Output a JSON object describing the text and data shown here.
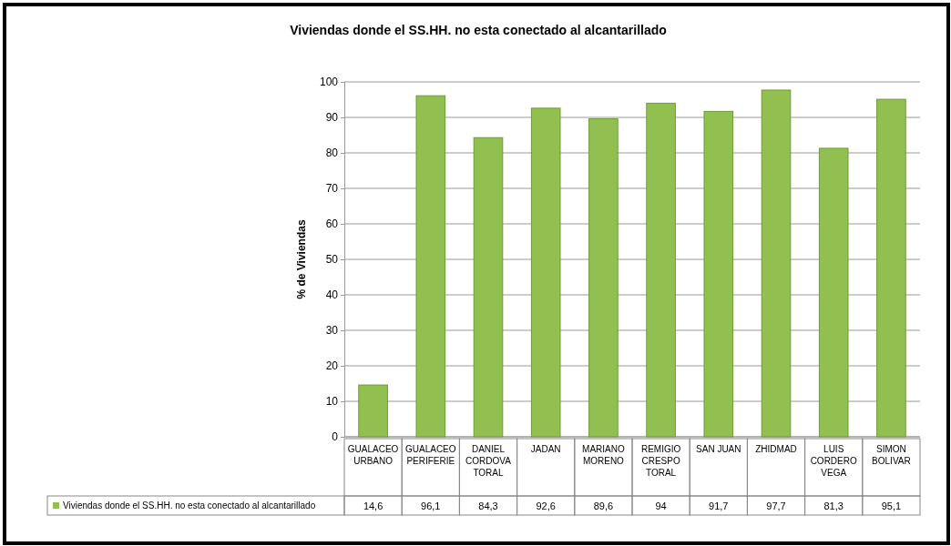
{
  "chart_data": {
    "type": "bar",
    "title": "Viviendas donde el SS.HH. no esta conectado al alcantarillado",
    "ylabel": "% de Viviendas",
    "categories": [
      "GUALACEO URBANO",
      "GUALACEO PERIFERIE",
      "DANIEL CORDOVA TORAL",
      "JADAN",
      "MARIANO MORENO",
      "REMIGIO CRESPO TORAL",
      "SAN JUAN",
      "ZHIDMAD",
      "LUIS CORDERO VEGA",
      "SIMON BOLIVAR"
    ],
    "series": [
      {
        "name": "Viviendas donde el SS.HH. no esta conectado al alcantarillado",
        "color": "#92c050",
        "values": [
          14.6,
          96.1,
          84.3,
          92.6,
          89.6,
          94,
          91.7,
          97.7,
          81.3,
          95.1
        ],
        "value_labels": [
          "14,6",
          "96,1",
          "84,3",
          "92,6",
          "89,6",
          "94",
          "91,7",
          "97,7",
          "81,3",
          "95,1"
        ]
      }
    ],
    "ylim": [
      0,
      100
    ],
    "yticks": [
      0,
      10,
      20,
      30,
      40,
      50,
      60,
      70,
      80,
      90,
      100
    ],
    "grid": "y",
    "legend": "bottom"
  }
}
